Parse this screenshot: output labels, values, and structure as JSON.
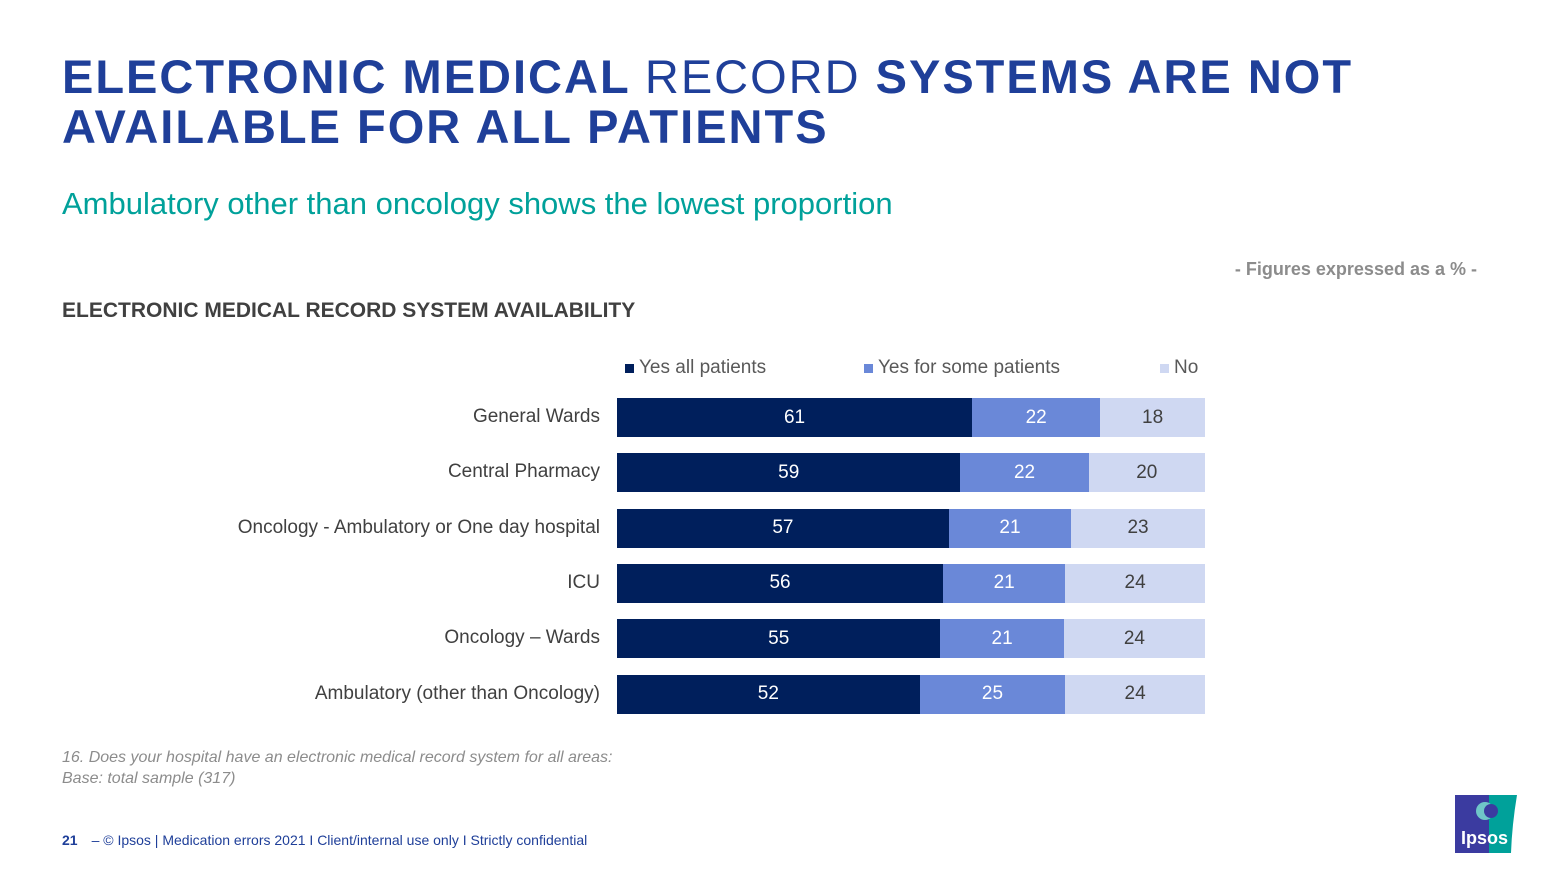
{
  "title": {
    "bold1": "ELECTRONIC MEDICAL ",
    "light": "RECORD",
    "bold2": " SYSTEMS ARE NOT AVAILABLE FOR ALL PATIENTS"
  },
  "subtitle": "Ambulatory other than oncology shows the lowest proportion",
  "note": "- Figures expressed as a % -",
  "chart_data": {
    "type": "bar",
    "stacked": true,
    "orientation": "horizontal",
    "title": "ELECTRONIC MEDICAL RECORD SYSTEM AVAILABILITY",
    "legend_position": "top",
    "categories": [
      "General Wards",
      "Central Pharmacy",
      "Oncology - Ambulatory or One day hospital",
      "ICU",
      "Oncology – Wards",
      "Ambulatory (other than Oncology)"
    ],
    "series": [
      {
        "name": "Yes all patients",
        "color": "#001f5c",
        "label_color": "#ffffff",
        "values": [
          61,
          59,
          57,
          56,
          55,
          52
        ]
      },
      {
        "name": "Yes for some patients",
        "color": "#6a88d8",
        "label_color": "#ffffff",
        "values": [
          22,
          22,
          21,
          21,
          21,
          25
        ]
      },
      {
        "name": "No",
        "color": "#cfd8f2",
        "label_color": "#404040",
        "values": [
          18,
          20,
          23,
          24,
          24,
          24
        ]
      }
    ]
  },
  "footnote": {
    "question": "16. Does your hospital have an electronic medical record system for all areas:",
    "base": "Base: total sample (317)"
  },
  "footer": {
    "page": "21",
    "text": "– © Ipsos | Medication errors 2021 I Client/internal use only I Strictly confidential"
  },
  "logo": {
    "text": "Ipsos",
    "colors": [
      "#3b3ba0",
      "#00a19a"
    ]
  }
}
